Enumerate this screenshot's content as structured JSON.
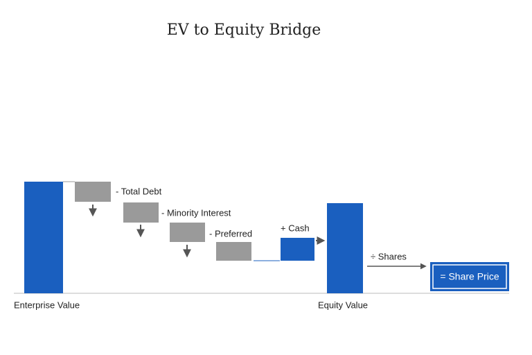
{
  "title": "EV to Equity Bridge",
  "steps": {
    "total_debt": "- Total Debt",
    "minority_interest": "- Minority Interest",
    "preferred": "- Preferred",
    "cash": "+ Cash",
    "shares": "÷ Shares",
    "share_price": "= Share Price"
  },
  "labels": {
    "enterprise_value": "Enterprise Value",
    "equity_value": "Equity Value"
  }
}
